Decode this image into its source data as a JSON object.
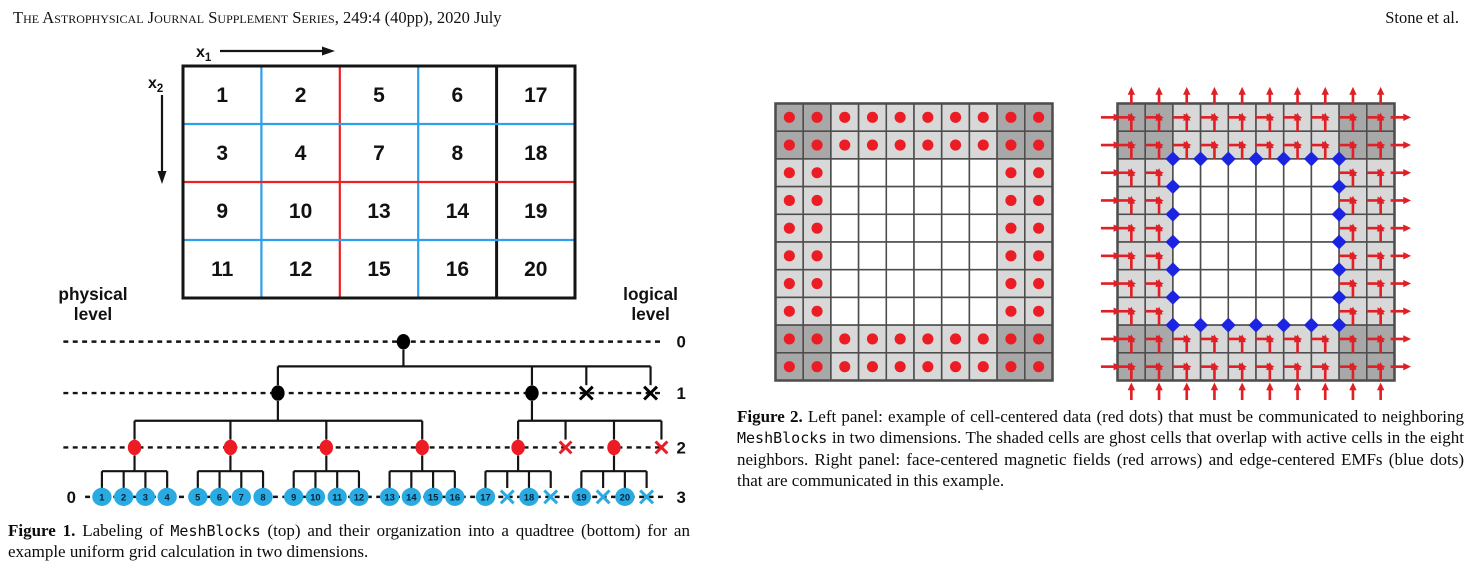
{
  "header": {
    "journal_smallcaps": "The Astrophysical Journal Supplement Series,",
    "issue_info": " 249:4 (40pp), 2020 July",
    "authors": "Stone et al."
  },
  "colors": {
    "ink": "#111111",
    "line_red": "#ed2024",
    "line_blue": "#2e9fe8",
    "tree_red": "#ec1c24",
    "tree_blue": "#29abe2",
    "leaf_text": "#06233d",
    "dot_red": "#ec1c24",
    "arrow_red": "#e01f26",
    "diamond_blue": "#1b24e0",
    "ghost_dark": "#a8a8a8",
    "ghost_light": "#d8d8d8",
    "cell_line": "#4d4d4d"
  },
  "figure1": {
    "axes": {
      "x1_base": "x",
      "x1_sub": "1",
      "x2_base": "x",
      "x2_sub": "2"
    },
    "grid": {
      "rows": 4,
      "cols": 5,
      "numbers": [
        [
          "1",
          "2",
          "5",
          "6",
          "17"
        ],
        [
          "3",
          "4",
          "7",
          "8",
          "18"
        ],
        [
          "9",
          "10",
          "13",
          "14",
          "19"
        ],
        [
          "11",
          "12",
          "15",
          "16",
          "20"
        ]
      ],
      "v_divider_colors": [
        "blue",
        "red",
        "blue",
        "black"
      ],
      "h_divider_colors": [
        "blue",
        "red",
        "blue"
      ]
    },
    "tree": {
      "left_axis_label": [
        "physical",
        "level"
      ],
      "right_axis_label": [
        "logical",
        "level"
      ],
      "logical_level_labels": [
        "0",
        "1",
        "2",
        "3"
      ],
      "physical_level_label": "0",
      "root": "dot",
      "level1": [
        "dot",
        "dot",
        "x",
        "x"
      ],
      "level2": [
        "dot",
        "dot",
        "dot",
        "dot",
        "dot",
        "x",
        "dot",
        "x"
      ],
      "leaves": [
        "1",
        "2",
        "3",
        "4",
        "5",
        "6",
        "7",
        "8",
        "9",
        "10",
        "11",
        "12",
        "13",
        "14",
        "15",
        "16",
        "17",
        "x",
        "18",
        "x",
        "19",
        "x",
        "20",
        "x"
      ]
    },
    "caption_segments": [
      {
        "t": "Figure 1.",
        "b": true
      },
      {
        "t": " Labeling of "
      },
      {
        "t": "MeshBlocks",
        "m": true
      },
      {
        "t": " (top) and their organization into a quadtree (bottom) for an example uniform grid calculation in two dimensions."
      }
    ]
  },
  "figure2": {
    "grid_size": 10,
    "ghost_width": 2,
    "left_panel": {
      "marker": "cell-centered-red-dot",
      "dot_count": 64
    },
    "right_panel": {
      "markers": [
        "face-centered-up-arrow",
        "face-centered-right-arrow",
        "edge-centered-emf-diamond"
      ],
      "diamond_count": 24
    },
    "caption_segments": [
      {
        "t": "Figure 2.",
        "b": true
      },
      {
        "t": " Left panel: example of cell-centered data (red dots) that must be communicated to neighboring "
      },
      {
        "t": "MeshBlocks",
        "m": true
      },
      {
        "t": " in two dimensions. The shaded cells are ghost cells that overlap with active cells in the eight neighbors. Right panel: face-centered magnetic fields (red arrows) and edge-centered EMFs (blue dots) that are communicated in this example."
      }
    ]
  }
}
